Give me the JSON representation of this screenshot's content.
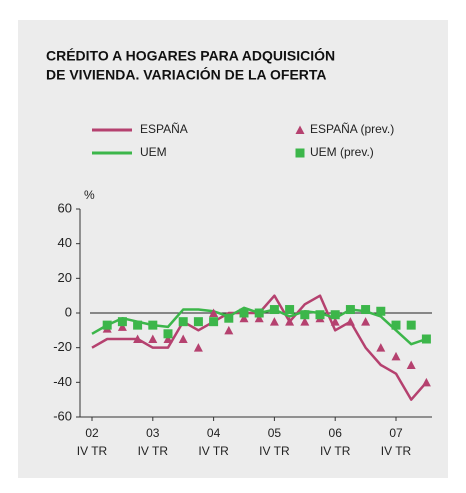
{
  "chart_data": {
    "type": "line",
    "title": [
      "CRÉDITO A HOGARES PARA ADQUISICIÓN",
      "DE VIVIENDA. VARIACIÓN DE LA OFERTA"
    ],
    "y_unit": "%",
    "categories": [
      [
        "02",
        "IV TR"
      ],
      null,
      null,
      null,
      [
        "03",
        "IV TR"
      ],
      null,
      null,
      null,
      [
        "04",
        "IV TR"
      ],
      null,
      null,
      null,
      [
        "05",
        "IV TR"
      ],
      null,
      null,
      null,
      [
        "06",
        "IV TR"
      ],
      null,
      null,
      null,
      [
        "07",
        "IV TR"
      ],
      null,
      null
    ],
    "series": [
      {
        "name": "ESPAÑA",
        "kind": "line",
        "color": "#b5416f",
        "values": [
          -20,
          -15,
          -15,
          -15,
          -20,
          -20,
          -5,
          -10,
          -5,
          0,
          0,
          0,
          10,
          -5,
          5,
          10,
          -10,
          -5,
          -20,
          -30,
          -35,
          -50,
          -40
        ]
      },
      {
        "name": "UEM",
        "kind": "line",
        "color": "#3cb64a",
        "values": [
          -12,
          -7,
          -3,
          -5,
          -7,
          -8,
          2,
          2,
          1,
          -2,
          3,
          0,
          2,
          -2,
          1,
          0,
          -3,
          2,
          1,
          -2,
          -10,
          -18,
          -15
        ]
      },
      {
        "name": "ESPAÑA (prev.)",
        "kind": "triangle",
        "color": "#b5416f",
        "values": [
          null,
          -9,
          -8,
          -15,
          -15,
          -15,
          -15,
          -20,
          0,
          -10,
          -3,
          -3,
          -5,
          -5,
          -5,
          -3,
          -5,
          -5,
          -5,
          -20,
          -25,
          -30,
          -40
        ]
      },
      {
        "name": "UEM (prev.)",
        "kind": "square",
        "color": "#3cb64a",
        "values": [
          null,
          -7,
          -5,
          -7,
          -7,
          -12,
          -5,
          -5,
          -5,
          -3,
          0,
          0,
          2,
          2,
          -1,
          -1,
          -1,
          2,
          2,
          1,
          -7,
          -7,
          -15
        ]
      }
    ],
    "ylim": [
      -60,
      60
    ],
    "yticks": [
      60,
      40,
      20,
      0,
      -20,
      -40,
      -60
    ]
  }
}
